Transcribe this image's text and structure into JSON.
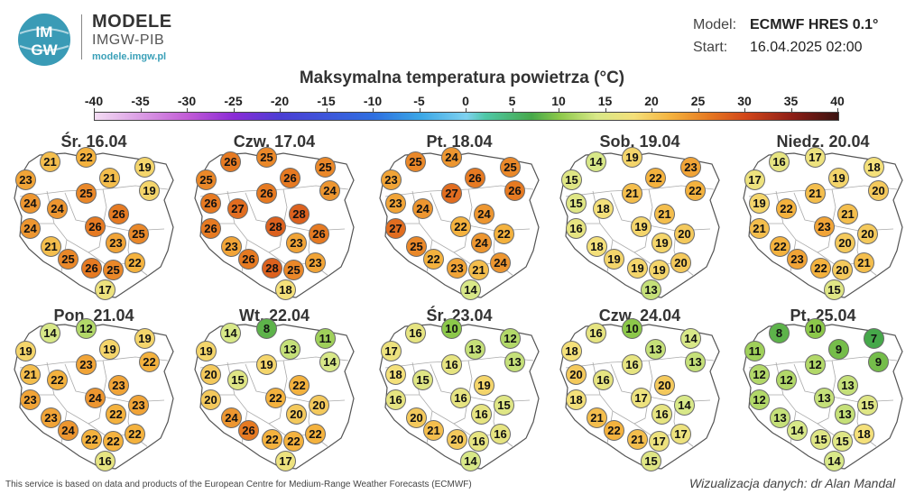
{
  "brand": {
    "logo_text_top": "IM",
    "logo_text_bottom": "GW",
    "title": "MODELE",
    "subtitle": "IMGW-PIB",
    "url": "modele.imgw.pl"
  },
  "meta": {
    "model_label": "Model:",
    "model_value": "ECMWF HRES 0.1°",
    "start_label": "Start:",
    "start_value": "16.04.2025 02:00"
  },
  "title": "Maksymalna temperatura powietrza (°C)",
  "scale": {
    "ticks": [
      "-40",
      "-35",
      "-30",
      "-25",
      "-20",
      "-15",
      "-10",
      "-5",
      "0",
      "5",
      "10",
      "15",
      "20",
      "25",
      "30",
      "35",
      "40"
    ],
    "stops": [
      {
        "t": -40,
        "color": "#f3dcf3"
      },
      {
        "t": -30,
        "color": "#c25cd6"
      },
      {
        "t": -25,
        "color": "#8a2bd6"
      },
      {
        "t": -20,
        "color": "#4b3ed4"
      },
      {
        "t": -10,
        "color": "#2f6fe0"
      },
      {
        "t": -5,
        "color": "#3aa6e6"
      },
      {
        "t": 0,
        "color": "#7fd2f0"
      },
      {
        "t": 2,
        "color": "#4fc8a8"
      },
      {
        "t": 7,
        "color": "#46a84a"
      },
      {
        "t": 10,
        "color": "#8cc84a"
      },
      {
        "t": 14,
        "color": "#d8e888"
      },
      {
        "t": 18,
        "color": "#f4e07a"
      },
      {
        "t": 22,
        "color": "#f4b23e"
      },
      {
        "t": 26,
        "color": "#e67a22"
      },
      {
        "t": 30,
        "color": "#d2471a"
      },
      {
        "t": 35,
        "color": "#8e1e16"
      },
      {
        "t": 40,
        "color": "#3a1210"
      }
    ]
  },
  "days": [
    {
      "label": "Śr. 16.04",
      "values": [
        21,
        22,
        19,
        23,
        21,
        19,
        24,
        24,
        25,
        26,
        24,
        26,
        25,
        23,
        21,
        25,
        26,
        25,
        22,
        17
      ]
    },
    {
      "label": "Czw. 17.04",
      "values": [
        26,
        25,
        25,
        25,
        26,
        24,
        26,
        27,
        26,
        28,
        26,
        28,
        26,
        23,
        23,
        26,
        28,
        25,
        23,
        18
      ]
    },
    {
      "label": "Pt. 18.04",
      "values": [
        25,
        24,
        25,
        23,
        26,
        26,
        23,
        24,
        27,
        24,
        27,
        22,
        22,
        24,
        25,
        22,
        23,
        21,
        24,
        14
      ]
    },
    {
      "label": "Sob. 19.04",
      "values": [
        14,
        19,
        23,
        15,
        22,
        22,
        15,
        18,
        21,
        21,
        16,
        19,
        20,
        19,
        18,
        19,
        19,
        19,
        20,
        13
      ]
    },
    {
      "label": "Niedz. 20.04",
      "values": [
        16,
        17,
        18,
        17,
        19,
        20,
        19,
        22,
        21,
        21,
        21,
        23,
        20,
        20,
        22,
        23,
        22,
        20,
        21,
        15
      ]
    },
    {
      "label": "Pon. 21.04",
      "values": [
        14,
        12,
        19,
        19,
        19,
        22,
        21,
        22,
        23,
        23,
        23,
        24,
        23,
        22,
        23,
        24,
        22,
        22,
        22,
        16
      ]
    },
    {
      "label": "Wt. 22.04",
      "values": [
        14,
        8,
        11,
        19,
        13,
        14,
        20,
        15,
        19,
        22,
        20,
        22,
        20,
        20,
        24,
        26,
        22,
        22,
        22,
        17
      ]
    },
    {
      "label": "Śr. 23.04",
      "values": [
        16,
        10,
        12,
        17,
        13,
        13,
        18,
        15,
        16,
        19,
        16,
        16,
        15,
        16,
        20,
        21,
        20,
        16,
        16,
        14
      ]
    },
    {
      "label": "Czw. 24.04",
      "values": [
        16,
        10,
        14,
        18,
        13,
        13,
        20,
        16,
        16,
        20,
        18,
        17,
        14,
        16,
        21,
        22,
        21,
        17,
        17,
        15
      ]
    },
    {
      "label": "Pt. 25.04",
      "values": [
        8,
        10,
        7,
        11,
        9,
        9,
        12,
        12,
        12,
        13,
        12,
        13,
        15,
        13,
        13,
        14,
        15,
        15,
        18,
        14
      ]
    }
  ],
  "footer": {
    "note": "This service is based on data and products of the European Centre for Medium-Range Weather Forecasts (ECMWF)",
    "credit": "Wizualizacja danych: dr Alan Mandal"
  }
}
